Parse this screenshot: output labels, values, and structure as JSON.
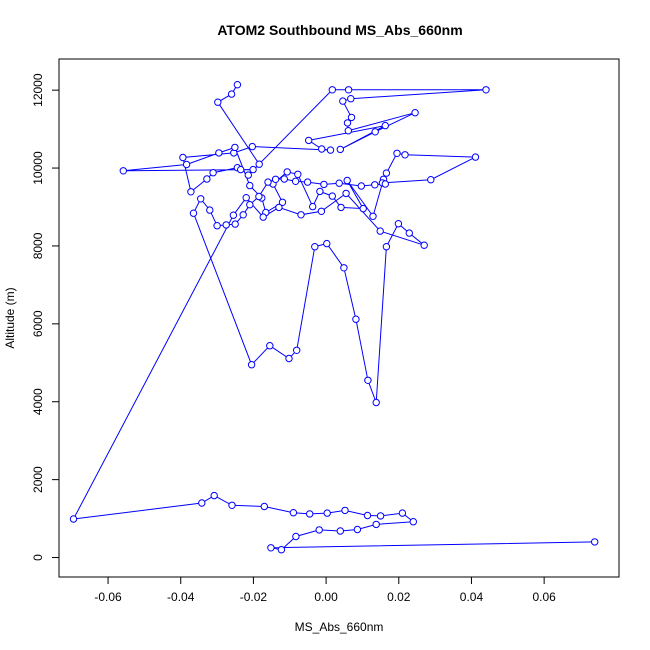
{
  "chart_data": {
    "type": "line",
    "title": "ATOM2 Southbound MS_Abs_660nm",
    "xlabel": "MS_Abs_660nm",
    "ylabel": "Altitude (m)",
    "xlim": [
      -0.0735,
      0.0806
    ],
    "ylim": [
      -500,
      12800
    ],
    "x_ticks": [
      -0.06,
      -0.04,
      -0.02,
      0.0,
      0.02,
      0.04,
      0.06
    ],
    "x_tick_labels": [
      "-0.06",
      "-0.04",
      "-0.02",
      "0.00",
      "0.02",
      "0.04",
      "0.06"
    ],
    "y_ticks": [
      0,
      2000,
      4000,
      6000,
      8000,
      10000,
      12000
    ],
    "y_tick_labels": [
      "0",
      "2000",
      "4000",
      "6000",
      "8000",
      "10000",
      "12000"
    ],
    "grid": false,
    "series": [
      {
        "color": "#0000ff",
        "marker": "open-circle",
        "x": [
          -0.0244,
          -0.026,
          -0.0298,
          -0.0184,
          -0.0214,
          0.0017,
          0.0062,
          0.044,
          0.0068,
          0.0046,
          0.007,
          0.0059,
          0.0061,
          0.0245,
          0.0135,
          0.0039,
          0.0163,
          -0.0048,
          -0.0012,
          0.0012,
          -0.0203,
          -0.0254,
          -0.0394,
          -0.0372,
          -0.0328,
          -0.0311,
          -0.0244,
          -0.0235,
          -0.0201,
          -0.0558,
          -0.0384,
          -0.0295,
          -0.0251,
          -0.021,
          -0.0177,
          -0.0166,
          -0.012,
          -0.0146,
          -0.0107,
          -0.0078,
          -0.0037,
          -0.0017,
          0.0017,
          0.0041,
          0.0102,
          0.0058,
          0.0129,
          0.0158,
          0.0166,
          0.0195,
          0.0217,
          0.0411,
          0.0288,
          0.0155,
          0.0163,
          0.0134,
          0.0097,
          0.0036,
          -0.0006,
          -0.0051,
          -0.0084,
          -0.0115,
          -0.0139,
          -0.016,
          -0.0185,
          -0.021,
          -0.0228,
          -0.025,
          -0.0275,
          -0.03,
          -0.032,
          -0.0345,
          -0.0365,
          -0.0205,
          -0.0155,
          -0.0102,
          -0.0081,
          -0.0031,
          0.0002,
          0.0049,
          0.0082,
          0.0115,
          0.0138,
          0.0166,
          0.0199,
          0.0229,
          0.027,
          0.0149,
          0.0055,
          -0.0013,
          -0.0069,
          -0.013,
          -0.0173,
          -0.022,
          -0.0255,
          -0.0695,
          -0.0342,
          -0.0308,
          -0.0259,
          -0.017,
          -0.009,
          -0.0045,
          0.0003,
          0.0052,
          0.0114,
          0.015,
          0.021,
          0.024,
          0.0138,
          0.0086,
          0.0039,
          -0.0019,
          -0.0083,
          -0.0123,
          -0.0152,
          0.0739
        ],
        "y": [
          12140,
          11900,
          11690,
          10100,
          9820,
          12010,
          12010,
          12010,
          11780,
          11720,
          11300,
          11160,
          10960,
          11420,
          10930,
          10480,
          11090,
          10710,
          10490,
          10460,
          10550,
          10390,
          10270,
          9390,
          9720,
          9880,
          10010,
          9960,
          9960,
          9930,
          10090,
          10390,
          10530,
          9550,
          9230,
          8860,
          9120,
          9590,
          9900,
          9840,
          9010,
          9400,
          9280,
          8990,
          8960,
          9680,
          8760,
          9710,
          9870,
          10380,
          10340,
          10280,
          9700,
          9620,
          9590,
          9570,
          9540,
          9610,
          9580,
          9640,
          9660,
          9720,
          9710,
          9640,
          9270,
          9060,
          8800,
          8560,
          8540,
          8520,
          8920,
          9210,
          8840,
          4950,
          5440,
          5110,
          5320,
          7980,
          8060,
          7440,
          6120,
          4550,
          3980,
          7980,
          8570,
          8330,
          8020,
          8380,
          9350,
          8890,
          8800,
          8990,
          8740,
          9240,
          8790,
          990,
          1400,
          1590,
          1340,
          1310,
          1150,
          1120,
          1140,
          1210,
          1080,
          1070,
          1140,
          920,
          850,
          720,
          680,
          710,
          540,
          200,
          250,
          400
        ]
      }
    ]
  }
}
